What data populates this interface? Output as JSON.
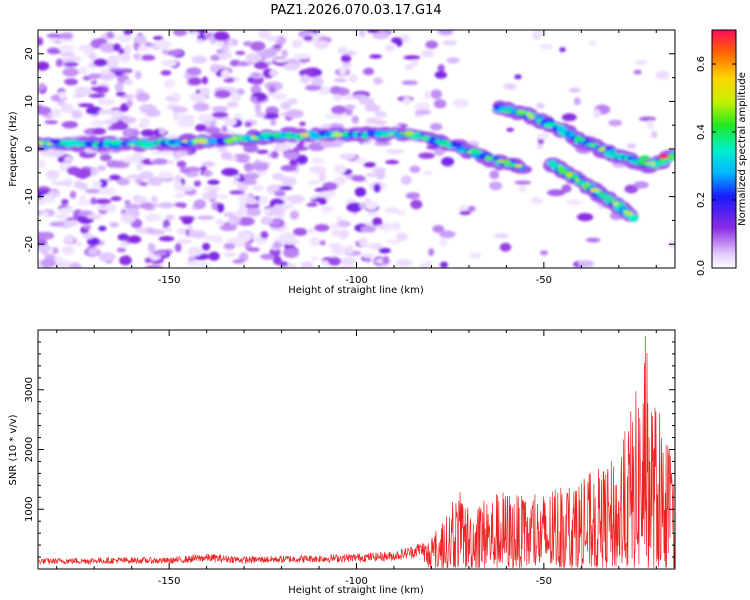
{
  "chart_data": [
    {
      "type": "heatmap",
      "title": "PAZ1.2026.070.03.17.G14",
      "xlabel": "Height of straight line (km)",
      "ylabel": "Frequency (Hz)",
      "xlim": [
        -185,
        -15
      ],
      "ylim": [
        -25,
        25
      ],
      "xticks": [
        -150,
        -100,
        -50
      ],
      "yticks": [
        -20,
        -10,
        0,
        10,
        20
      ],
      "colorbar": {
        "label": "Normalized spectral amplitude",
        "range": [
          0.0,
          0.7
        ],
        "ticks": [
          0.0,
          0.2,
          0.4,
          0.6
        ]
      },
      "ridges": [
        {
          "name": "main band",
          "x": [
            -185,
            -160,
            -140,
            -120,
            -105,
            -95,
            -85,
            -75,
            -65,
            -55
          ],
          "y": [
            1.2,
            1.0,
            1.6,
            2.8,
            3.0,
            3.2,
            3.0,
            1.0,
            -2.0,
            -4.0
          ]
        },
        {
          "name": "upper branch",
          "x": [
            -62,
            -55,
            -45,
            -38,
            -30,
            -22,
            -15
          ],
          "y": [
            8.5,
            7.5,
            4.0,
            1.0,
            -1.5,
            -3.5,
            -1.5
          ]
        },
        {
          "name": "lower branch",
          "x": [
            -48,
            -40,
            -35,
            -30,
            -26
          ],
          "y": [
            -3.0,
            -7.0,
            -9.5,
            -12.0,
            -14.5
          ]
        }
      ]
    },
    {
      "type": "line",
      "xlabel": "Height of straight line (km)",
      "ylabel": "SNR (10 * v/v)",
      "xlim": [
        -185,
        -15
      ],
      "ylim": [
        0,
        4000
      ],
      "xticks": [
        -150,
        -100,
        -50
      ],
      "yticks": [
        1000,
        2000,
        3000
      ],
      "line_color": "#ee2222",
      "envelope": {
        "x": [
          -185,
          -160,
          -150,
          -140,
          -130,
          -110,
          -100,
          -90,
          -85,
          -80,
          -76,
          -73,
          -70,
          -65,
          -60,
          -55,
          -50,
          -45,
          -40,
          -35,
          -30,
          -27,
          -25,
          -23,
          -21,
          -19,
          -17,
          -15
        ],
        "y": [
          180,
          200,
          190,
          260,
          210,
          240,
          260,
          300,
          400,
          550,
          900,
          1350,
          1100,
          1250,
          1350,
          1200,
          1300,
          1450,
          1550,
          1700,
          1900,
          2700,
          3100,
          3950,
          3000,
          2600,
          2200,
          1500
        ]
      }
    }
  ]
}
